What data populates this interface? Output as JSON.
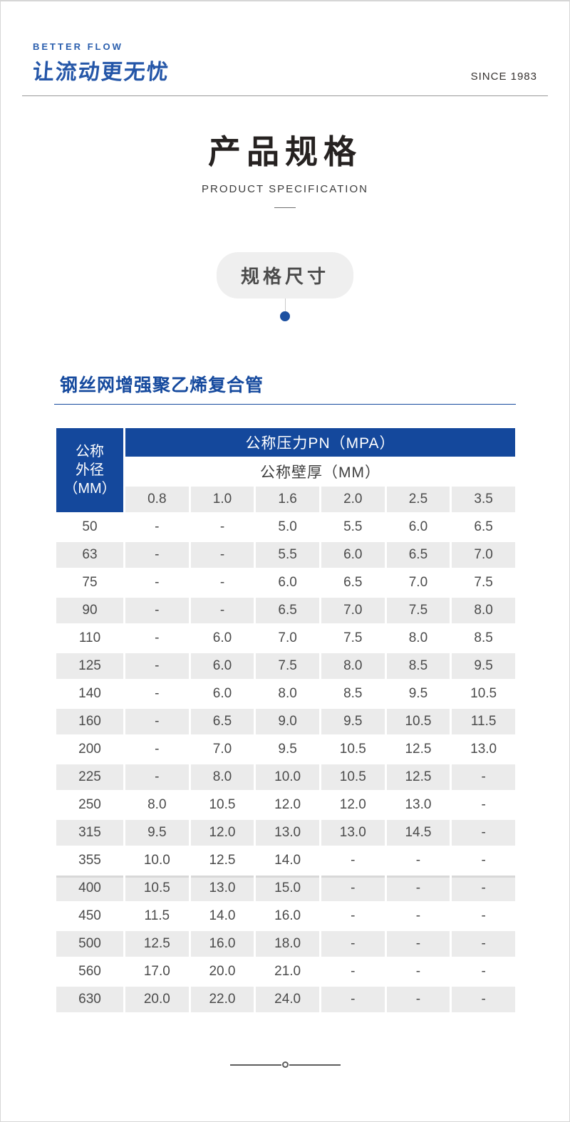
{
  "brand": {
    "tagline_en": "BETTER FLOW",
    "logo_text": "让流动更无忧",
    "since": "SINCE 1983"
  },
  "title": {
    "main": "产品规格",
    "sub": "PRODUCT SPECIFICATION"
  },
  "badge": {
    "label": "规格尺寸"
  },
  "section": {
    "heading": "钢丝网增强聚乙烯复合管"
  },
  "table": {
    "corner_lines": [
      "公称",
      "外径",
      "（MM）"
    ],
    "group_header": "公称压力PN（MPA）",
    "sub_header": "公称壁厚（MM）",
    "pressure_columns": [
      "0.8",
      "1.0",
      "1.6",
      "2.0",
      "2.5",
      "3.5"
    ],
    "rows": [
      {
        "dn": "50",
        "values": [
          "-",
          "-",
          "5.0",
          "5.5",
          "6.0",
          "6.5"
        ]
      },
      {
        "dn": "63",
        "values": [
          "-",
          "-",
          "5.5",
          "6.0",
          "6.5",
          "7.0"
        ]
      },
      {
        "dn": "75",
        "values": [
          "-",
          "-",
          "6.0",
          "6.5",
          "7.0",
          "7.5"
        ]
      },
      {
        "dn": "90",
        "values": [
          "-",
          "-",
          "6.5",
          "7.0",
          "7.5",
          "8.0"
        ]
      },
      {
        "dn": "110",
        "values": [
          "-",
          "6.0",
          "7.0",
          "7.5",
          "8.0",
          "8.5"
        ]
      },
      {
        "dn": "125",
        "values": [
          "-",
          "6.0",
          "7.5",
          "8.0",
          "8.5",
          "9.5"
        ]
      },
      {
        "dn": "140",
        "values": [
          "-",
          "6.0",
          "8.0",
          "8.5",
          "9.5",
          "10.5"
        ]
      },
      {
        "dn": "160",
        "values": [
          "-",
          "6.5",
          "9.0",
          "9.5",
          "10.5",
          "11.5"
        ]
      },
      {
        "dn": "200",
        "values": [
          "-",
          "7.0",
          "9.5",
          "10.5",
          "12.5",
          "13.0"
        ]
      },
      {
        "dn": "225",
        "values": [
          "-",
          "8.0",
          "10.0",
          "10.5",
          "12.5",
          "-"
        ]
      },
      {
        "dn": "250",
        "values": [
          "8.0",
          "10.5",
          "12.0",
          "12.0",
          "13.0",
          "-"
        ]
      },
      {
        "dn": "315",
        "values": [
          "9.5",
          "12.0",
          "13.0",
          "13.0",
          "14.5",
          "-"
        ]
      },
      {
        "dn": "355",
        "values": [
          "10.0",
          "12.5",
          "14.0",
          "-",
          "-",
          "-"
        ]
      },
      {
        "dn": "400",
        "values": [
          "10.5",
          "13.0",
          "15.0",
          "-",
          "-",
          "-"
        ]
      },
      {
        "dn": "450",
        "values": [
          "11.5",
          "14.0",
          "16.0",
          "-",
          "-",
          "-"
        ]
      },
      {
        "dn": "500",
        "values": [
          "12.5",
          "16.0",
          "18.0",
          "-",
          "-",
          "-"
        ]
      },
      {
        "dn": "560",
        "values": [
          "17.0",
          "20.0",
          "21.0",
          "-",
          "-",
          "-"
        ]
      },
      {
        "dn": "630",
        "values": [
          "20.0",
          "22.0",
          "24.0",
          "-",
          "-",
          "-"
        ]
      }
    ]
  },
  "colors": {
    "primary_blue": "#14489c",
    "logo_blue": "#2456a8",
    "dot_blue": "#1b4fa0",
    "row_shade": "#ebebeb",
    "badge_gray": "#efefef"
  }
}
